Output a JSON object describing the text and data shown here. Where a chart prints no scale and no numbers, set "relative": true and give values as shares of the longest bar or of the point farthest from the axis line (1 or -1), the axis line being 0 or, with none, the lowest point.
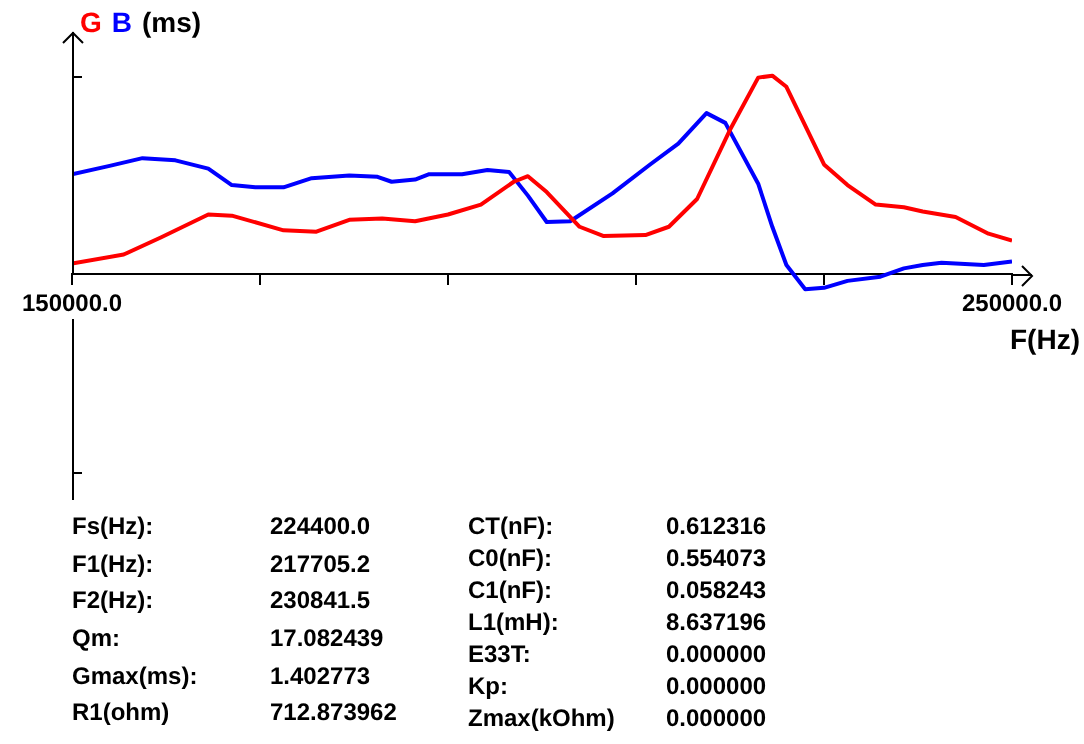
{
  "chart_data": {
    "type": "line",
    "relative": true,
    "xlabel": "F(Hz)",
    "ylabel": "(ms)",
    "legend": "top left",
    "grid": false,
    "marker": "none",
    "line_style": "solid",
    "xlim": [
      150000,
      250000
    ],
    "xticks": [
      {
        "value": 150000,
        "label": "150000.0"
      },
      {
        "value": 170000,
        "label": null
      },
      {
        "value": 190000,
        "label": null
      },
      {
        "value": 210000,
        "label": null
      },
      {
        "value": 230000,
        "label": null
      },
      {
        "value": 250000,
        "label": "250000.0"
      }
    ],
    "series": [
      {
        "name": "G",
        "color": "#ff0000",
        "x": [
          150000,
          155500,
          159500,
          164500,
          167000,
          172500,
          176000,
          179500,
          183000,
          186500,
          190000,
          193500,
          197000,
          198500,
          200500,
          204000,
          206500,
          211000,
          213500,
          216500,
          220000,
          223000,
          224500,
          226000,
          230000,
          232500,
          235500,
          238500,
          240500,
          244000,
          247500,
          250000
        ],
        "values": [
          0.052,
          0.098,
          0.185,
          0.3,
          0.294,
          0.22,
          0.213,
          0.273,
          0.28,
          0.266,
          0.3,
          0.35,
          0.465,
          0.493,
          0.413,
          0.238,
          0.192,
          0.196,
          0.238,
          0.378,
          0.727,
          0.99,
          1,
          0.944,
          0.552,
          0.448,
          0.35,
          0.336,
          0.315,
          0.287,
          0.203,
          0.168
        ]
      },
      {
        "name": "B",
        "color": "#0000ff",
        "x": [
          150000,
          154000,
          157500,
          161000,
          164500,
          167000,
          169500,
          172500,
          175500,
          179500,
          182500,
          184000,
          186500,
          188000,
          191500,
          194200,
          196500,
          198500,
          200500,
          203000,
          207500,
          211500,
          214500,
          217500,
          219500,
          223000,
          224500,
          226000,
          228000,
          230000,
          232500,
          236000,
          238500,
          240500,
          242500,
          247000,
          250000
        ],
        "values": [
          0.503,
          0.545,
          0.584,
          0.573,
          0.531,
          0.448,
          0.437,
          0.437,
          0.483,
          0.497,
          0.49,
          0.465,
          0.476,
          0.503,
          0.503,
          0.524,
          0.514,
          0.395,
          0.262,
          0.266,
          0.406,
          0.552,
          0.657,
          0.811,
          0.762,
          0.455,
          0.238,
          0.045,
          -0.077,
          -0.07,
          -0.035,
          -0.014,
          0.028,
          0.045,
          0.056,
          0.045,
          0.063
        ]
      }
    ],
    "annotations": [
      "Fs(Hz):",
      "224400.0",
      "F1(Hz):",
      "217705.2",
      "F2(Hz):",
      "230841.5",
      "Qm:",
      "17.082439",
      "Gmax(ms):",
      "1.402773",
      "R1(ohm)",
      "712.873962",
      "CT(nF):",
      "0.612316",
      "C0(nF):",
      "0.554073",
      "C1(nF):",
      "0.058243",
      "L1(mH):",
      "8.637196",
      "E33T:",
      "0.000000",
      "Kp:",
      "0.000000",
      "Zmax(kOhm)",
      "0.000000"
    ]
  }
}
